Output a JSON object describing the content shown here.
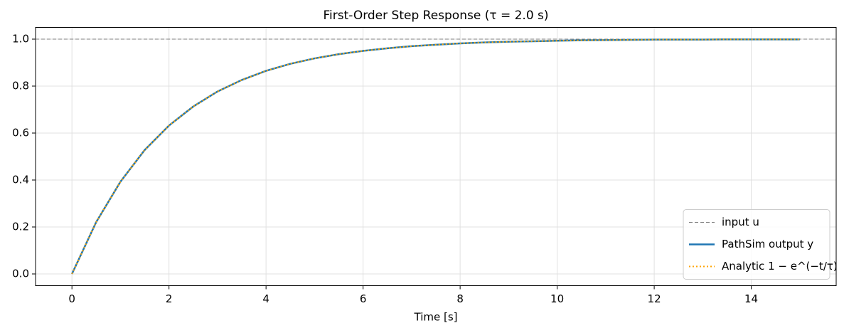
{
  "chart_data": {
    "type": "line",
    "title": "First-Order Step Response  (τ = 2.0 s)",
    "x_label": "Time [s]",
    "x": [
      0,
      0.5,
      1,
      1.5,
      2,
      2.5,
      3,
      3.5,
      4,
      4.5,
      5,
      5.5,
      6,
      6.5,
      7,
      7.5,
      8,
      8.5,
      9,
      9.5,
      10,
      10.5,
      11,
      11.5,
      12,
      12.5,
      13,
      13.5,
      14,
      14.5,
      15
    ],
    "series": [
      {
        "name": "input u",
        "color": "#808080",
        "style": "dashed",
        "x": [
          -0.75,
          15.75
        ],
        "values": [
          1,
          1
        ]
      },
      {
        "name": "PathSim output y",
        "color": "#1f77b4",
        "style": "solid",
        "values": [
          0,
          0.221,
          0.393,
          0.528,
          0.632,
          0.713,
          0.777,
          0.826,
          0.865,
          0.895,
          0.918,
          0.936,
          0.95,
          0.961,
          0.97,
          0.976,
          0.982,
          0.986,
          0.989,
          0.991,
          0.993,
          0.995,
          0.996,
          0.997,
          0.998,
          0.998,
          0.998,
          0.999,
          0.999,
          0.999,
          0.999
        ]
      },
      {
        "name": "Analytic 1 − e^(−t/τ)",
        "color": "#ffa500",
        "style": "dotted",
        "values": [
          0,
          0.221,
          0.393,
          0.528,
          0.632,
          0.713,
          0.777,
          0.826,
          0.865,
          0.895,
          0.918,
          0.936,
          0.95,
          0.961,
          0.97,
          0.976,
          0.982,
          0.986,
          0.989,
          0.991,
          0.993,
          0.995,
          0.996,
          0.997,
          0.998,
          0.998,
          0.998,
          0.999,
          0.999,
          0.999,
          0.999
        ]
      }
    ],
    "xlim": [
      -0.75,
      15.75
    ],
    "ylim": [
      -0.05,
      1.05
    ],
    "xticks": [
      0,
      2,
      4,
      6,
      8,
      10,
      12,
      14
    ],
    "yticks": [
      {
        "value": 0,
        "label": "0.0"
      },
      0.2,
      0.4,
      0.6,
      0.8,
      {
        "value": 1,
        "label": "1.0"
      }
    ],
    "grid": true,
    "legend": "lower right"
  }
}
